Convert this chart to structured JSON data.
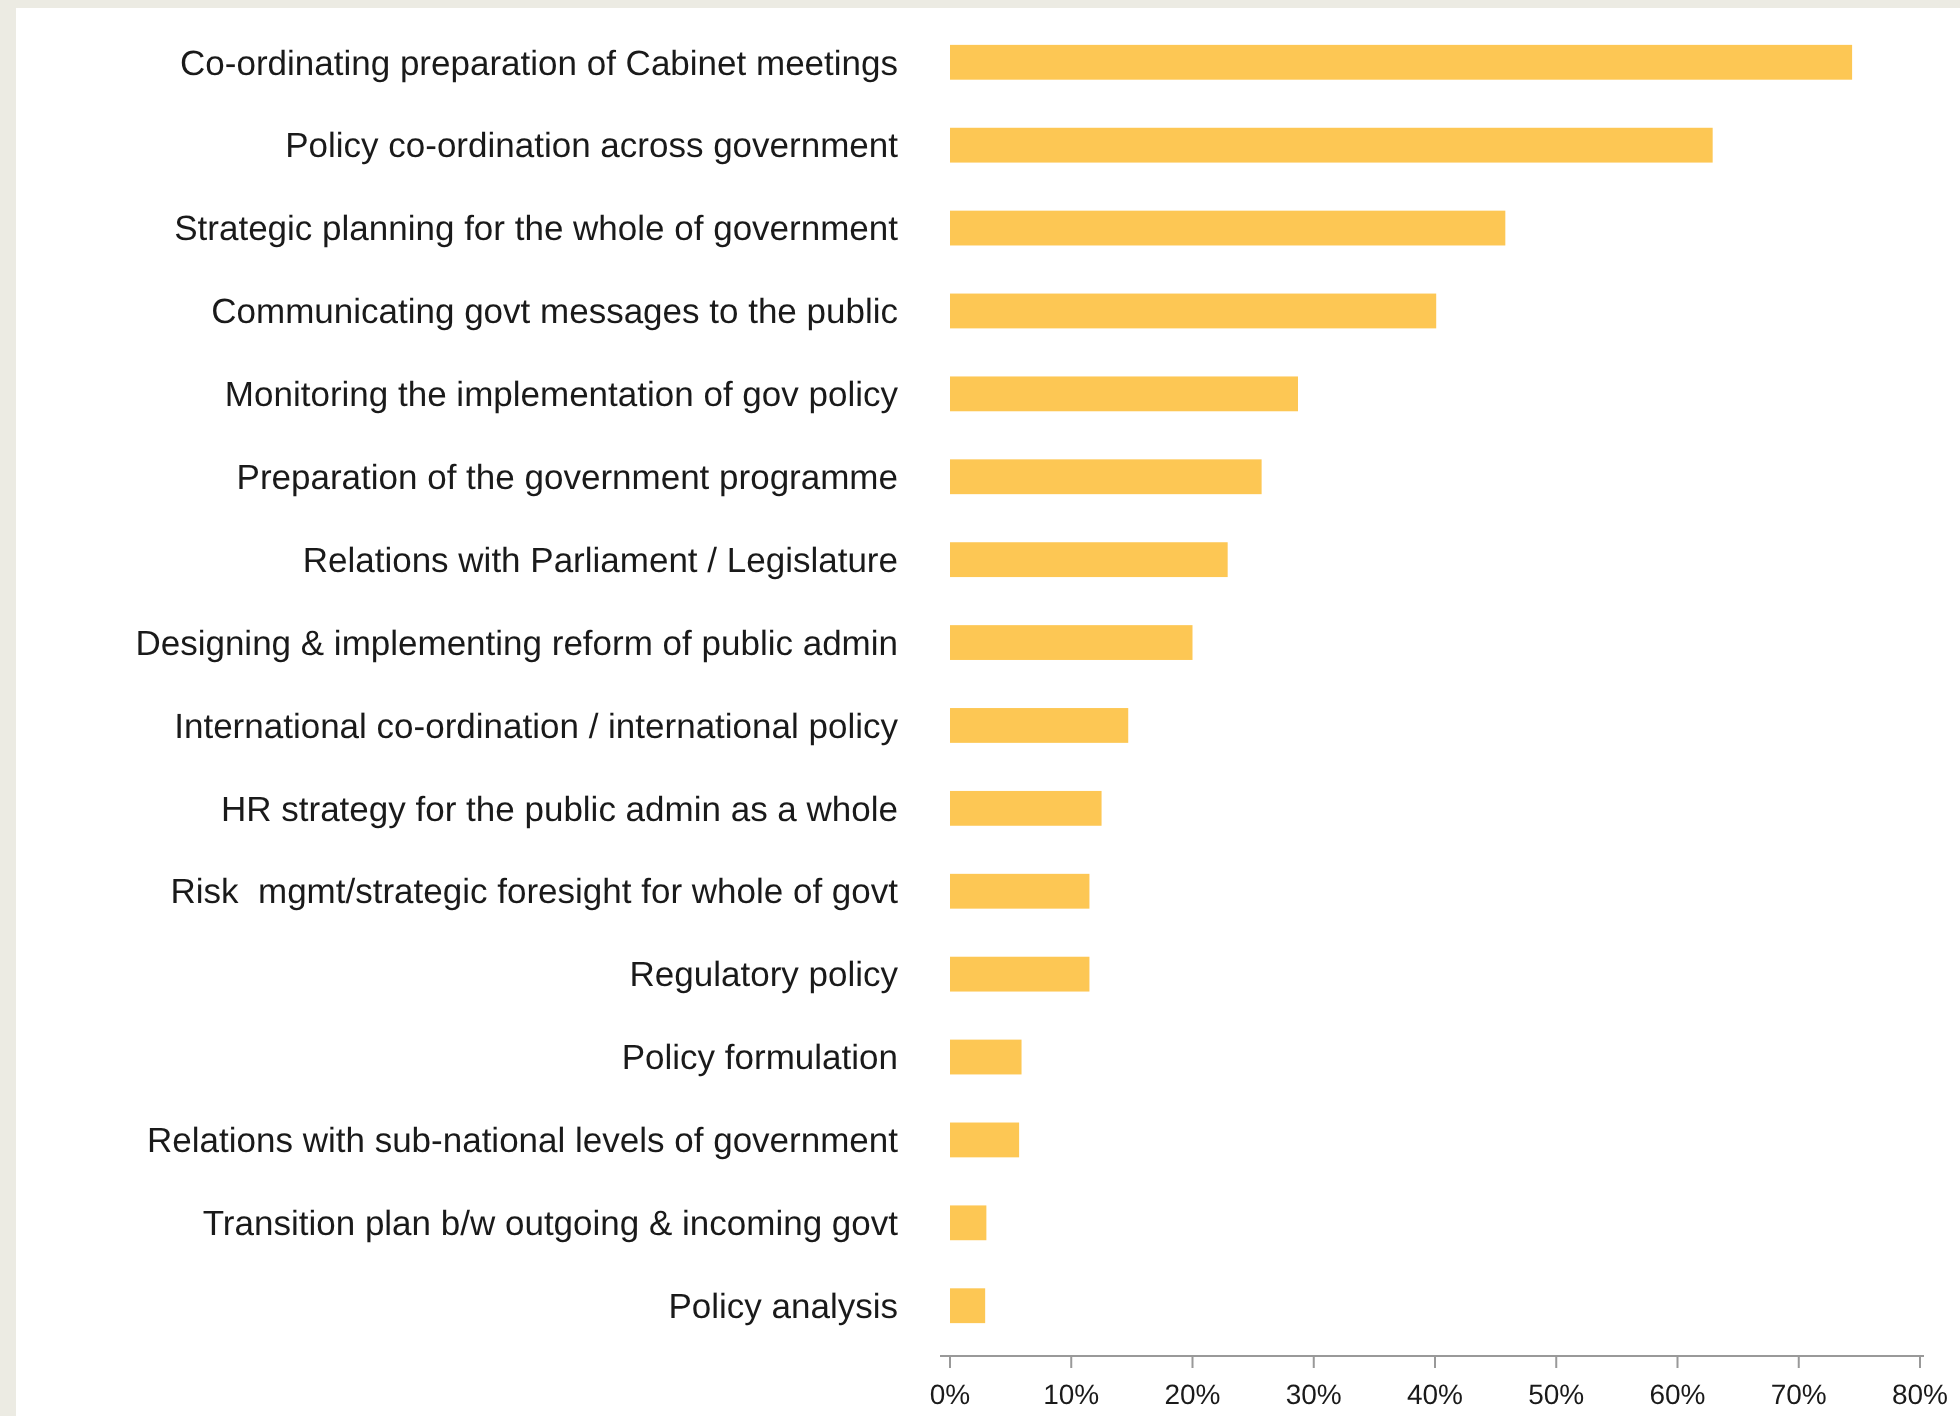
{
  "chart_data": {
    "type": "bar",
    "orientation": "horizontal",
    "categories": [
      "Co-ordinating preparation of Cabinet meetings",
      "Policy co-ordination across government",
      "Strategic planning for the whole of government",
      "Communicating govt messages to the public",
      "Monitoring the implementation of gov policy",
      "Preparation of the government programme",
      "Relations with Parliament / Legislature",
      "Designing & implementing reform of public admin",
      "International co-ordination / international policy",
      "HR strategy for the public admin as a whole",
      "Risk  mgmt/strategic foresight for whole of govt",
      "Regulatory policy",
      "Policy formulation",
      "Relations with sub-national levels of government",
      "Transition plan b/w outgoing & incoming govt",
      "Policy analysis"
    ],
    "values": [
      74.4,
      62.9,
      45.8,
      40.1,
      28.7,
      25.7,
      22.9,
      20,
      14.7,
      12.5,
      11.5,
      11.5,
      5.9,
      5.7,
      3,
      2.9
    ],
    "color": "#fdc754",
    "xlim": [
      0,
      80
    ],
    "xticks": [
      {
        "value": 0,
        "label": "0%"
      },
      {
        "value": 10,
        "label": "10%"
      },
      {
        "value": 20,
        "label": "20%"
      },
      {
        "value": 30,
        "label": "30%"
      },
      {
        "value": 40,
        "label": "40%"
      },
      {
        "value": 50,
        "label": "50%"
      },
      {
        "value": 60,
        "label": "60%"
      },
      {
        "value": 70,
        "label": "70%"
      },
      {
        "value": 80,
        "label": "80%"
      }
    ],
    "grid": false
  }
}
